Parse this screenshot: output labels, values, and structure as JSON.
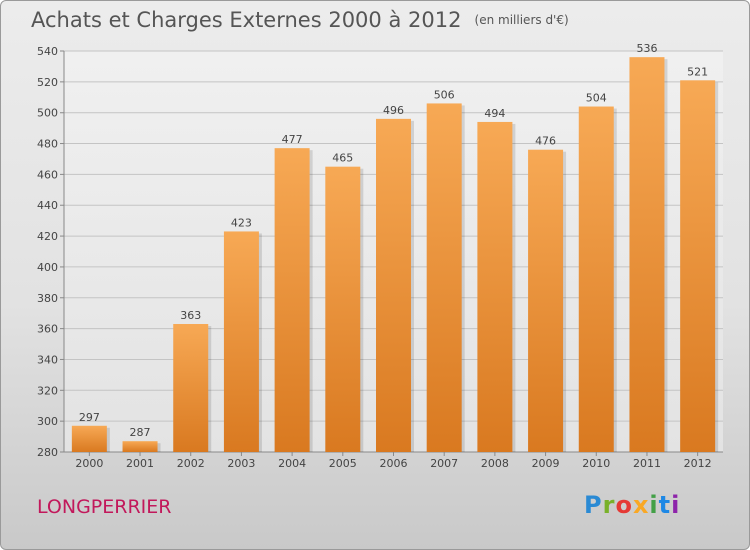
{
  "header": {
    "title": "Achats et Charges Externes 2000 à 2012",
    "unit": "(en milliers d'€)"
  },
  "footer": {
    "city": "LONGPERRIER",
    "logo_text": "Proxiti"
  },
  "colors": {
    "bar_top": "#f7a955",
    "bar_bottom": "#d97920",
    "grid": "#c4c4c4",
    "city": "#c2185b"
  },
  "chart_data": {
    "type": "bar",
    "title": "Achats et Charges Externes 2000 à 2012",
    "subtitle": "(en milliers d'€)",
    "xlabel": "",
    "ylabel": "",
    "categories": [
      "2000",
      "2001",
      "2002",
      "2003",
      "2004",
      "2005",
      "2006",
      "2007",
      "2008",
      "2009",
      "2010",
      "2011",
      "2012"
    ],
    "values": [
      297,
      287,
      363,
      423,
      477,
      465,
      496,
      506,
      494,
      476,
      504,
      536,
      521
    ],
    "ylim": [
      280,
      540
    ],
    "yticks": [
      280,
      300,
      320,
      340,
      360,
      380,
      400,
      420,
      440,
      460,
      480,
      500,
      520,
      540
    ],
    "grid": true,
    "data_labels": true
  }
}
